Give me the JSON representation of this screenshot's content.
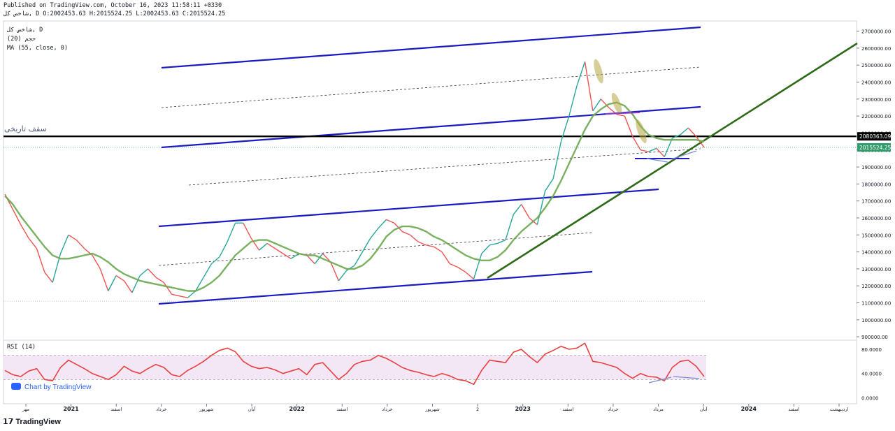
{
  "header": {
    "published": "Published on TradingView.com, October 16, 2023 11:58:11 +0330",
    "ohlc": "شاخص کل, D O:2002453.63 H:2015524.25 L:2002453.63 C:2015524.25"
  },
  "legend": {
    "symbol": "شاخص کل, D",
    "indicator1": "(20) حجم",
    "indicator2": "MA (55, close, 0)",
    "rsi": "RSI (14)"
  },
  "annotation_label": "سقف تاریخی",
  "chart_badge": "Chart by TradingView",
  "footer": {
    "brand": "TradingView"
  },
  "colors": {
    "up": "#26a69a",
    "down": "#ef5350",
    "ma": "#6aa84f",
    "channel": "#1a1ac0",
    "trend": "#2f6a18",
    "resistance": "#000000",
    "rsi": "#e84040",
    "rsi_band": "#f3e6f5",
    "price_badge": "#2e9c6b"
  },
  "price_labels": {
    "resistance": "2080363.09",
    "last": "2015524.25"
  },
  "chart_data": [
    {
      "type": "line",
      "title": "",
      "y_ticks": [
        "2700000.00",
        "2600000.00",
        "2500000.00",
        "2400000.00",
        "2300000.00",
        "2200000.00",
        "2100000.00",
        "2000000.00",
        "1900000.00",
        "1800000.00",
        "1700000.00",
        "1600000.00",
        "1500000.00",
        "1400000.00",
        "1300000.00",
        "1200000.00",
        "1100000.00",
        "1000000.00",
        "900000.00"
      ],
      "ylim": [
        880000,
        2760000
      ],
      "x_labels": [
        "مهر",
        "2021",
        "اسفند",
        "خرداد",
        "شهریور",
        "آبان",
        "2022",
        "اسفند",
        "خرداد",
        "شهریور",
        "2",
        "2023",
        "اسفند",
        "خرداد",
        "مرداد",
        "آبان",
        "2024",
        "اسفند",
        "اردیبهشت"
      ],
      "series": [
        {
          "values": [
            1740000,
            1650000,
            1560000,
            1480000,
            1420000,
            1280000,
            1220000,
            1390000,
            1500000,
            1470000,
            1420000,
            1380000,
            1300000,
            1170000,
            1260000,
            1230000,
            1160000,
            1260000,
            1300000,
            1250000,
            1220000,
            1150000,
            1140000,
            1130000,
            1170000,
            1250000,
            1330000,
            1370000,
            1460000,
            1570000,
            1570000,
            1480000,
            1410000,
            1450000,
            1420000,
            1390000,
            1360000,
            1390000,
            1380000,
            1330000,
            1390000,
            1340000,
            1230000,
            1290000,
            1320000,
            1400000,
            1480000,
            1540000,
            1590000,
            1570000,
            1520000,
            1500000,
            1460000,
            1440000,
            1430000,
            1400000,
            1330000,
            1310000,
            1280000,
            1240000,
            1390000,
            1440000,
            1450000,
            1470000,
            1620000,
            1680000,
            1600000,
            1560000,
            1760000,
            1830000,
            2050000,
            2200000,
            2380000,
            2520000,
            2230000,
            2300000,
            2250000,
            2210000,
            2200000,
            2080000,
            2000000,
            1990000,
            2010000,
            1960000,
            2070000,
            2090000,
            2130000,
            2080000,
            2015524
          ]
        },
        {
          "name": "MA (55, close, 0)",
          "values": [
            1730000,
            1680000,
            1610000,
            1550000,
            1490000,
            1430000,
            1380000,
            1360000,
            1360000,
            1370000,
            1380000,
            1390000,
            1370000,
            1340000,
            1300000,
            1270000,
            1250000,
            1230000,
            1220000,
            1210000,
            1200000,
            1190000,
            1180000,
            1170000,
            1170000,
            1190000,
            1220000,
            1260000,
            1320000,
            1380000,
            1420000,
            1460000,
            1470000,
            1470000,
            1450000,
            1430000,
            1410000,
            1390000,
            1380000,
            1380000,
            1360000,
            1340000,
            1320000,
            1300000,
            1300000,
            1320000,
            1360000,
            1420000,
            1490000,
            1530000,
            1550000,
            1550000,
            1540000,
            1520000,
            1490000,
            1470000,
            1440000,
            1410000,
            1380000,
            1360000,
            1350000,
            1350000,
            1370000,
            1410000,
            1470000,
            1520000,
            1560000,
            1600000,
            1660000,
            1730000,
            1820000,
            1920000,
            2020000,
            2120000,
            2200000,
            2240000,
            2270000,
            2280000,
            2260000,
            2210000,
            2140000,
            2090000,
            2070000,
            2060000,
            2060000,
            2060000,
            2060000,
            2060000,
            2050000
          ]
        }
      ]
    },
    {
      "type": "line",
      "title": "RSI (14)",
      "y_ticks": [
        "80.0000",
        "40.0000",
        "0.0000"
      ],
      "ylim": [
        -10,
        95
      ],
      "series": [
        {
          "name": "RSI (14)",
          "values": [
            45,
            38,
            35,
            44,
            48,
            30,
            28,
            50,
            62,
            55,
            48,
            40,
            35,
            30,
            38,
            52,
            44,
            40,
            48,
            55,
            50,
            38,
            35,
            45,
            52,
            60,
            70,
            78,
            82,
            76,
            60,
            52,
            48,
            50,
            46,
            40,
            44,
            48,
            38,
            55,
            58,
            44,
            30,
            40,
            55,
            60,
            62,
            70,
            65,
            58,
            50,
            45,
            42,
            38,
            35,
            40,
            36,
            30,
            28,
            22,
            45,
            62,
            60,
            58,
            75,
            80,
            68,
            58,
            72,
            78,
            85,
            80,
            82,
            90,
            60,
            58,
            54,
            50,
            40,
            32,
            40,
            35,
            34,
            28,
            50,
            60,
            62,
            52,
            35
          ]
        }
      ]
    }
  ]
}
